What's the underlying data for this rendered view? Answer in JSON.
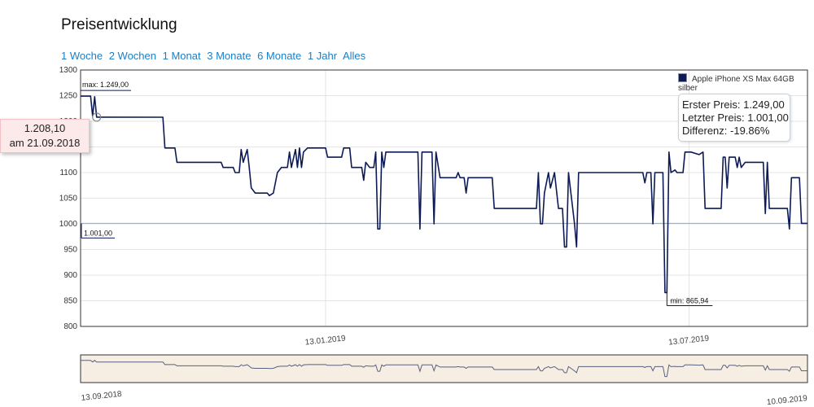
{
  "page_title": "Preisentwicklung",
  "range_buttons": [
    "1 Woche",
    "2 Wochen",
    "1 Monat",
    "3 Monate",
    "6 Monate",
    "1 Jahr",
    "Alles"
  ],
  "tooltip": {
    "value": "1.208,10",
    "date": "am 21.09.2018"
  },
  "infobox": {
    "first_price": "Erster Preis: 1.249,00",
    "last_price": "Letzter Preis: 1.001,00",
    "difference": "Differenz: -19.86%"
  },
  "colors": {
    "line": "#0d1a55",
    "navigator_bg": "#f6eee2",
    "link": "#1a7fc7"
  },
  "chart_data": {
    "type": "line",
    "title": "Preisentwicklung",
    "xlabel": "",
    "ylabel": "",
    "ylim": [
      800,
      1300
    ],
    "yticks": [
      800,
      850,
      900,
      950,
      1000,
      1050,
      1100,
      1150,
      1200,
      1250,
      1300
    ],
    "xticks": [
      {
        "date": "2019-01-13",
        "label": "13.01.2019"
      },
      {
        "date": "2019-07-13",
        "label": "13.07.2019"
      }
    ],
    "xrange": [
      "2018-09-13",
      "2019-09-10"
    ],
    "navigator_labels": [
      "13.09.2018",
      "10.09.2019"
    ],
    "grid": true,
    "legend_position": "top-right",
    "annotations": [
      {
        "text": "max: 1.249,00",
        "date": "2018-09-13",
        "value": 1249
      },
      {
        "text": "1.001,00",
        "date": "2019-09-10",
        "value": 1001
      },
      {
        "text": "min: 865,94",
        "date": "2019-07-02",
        "value": 865.94
      }
    ],
    "reference_line": 1001,
    "marker": {
      "date": "2018-09-21",
      "value": 1208.1
    },
    "series": [
      {
        "name": "Apple iPhone XS Max 64GB silber",
        "points": [
          [
            "2018-09-13",
            1249
          ],
          [
            "2018-09-18",
            1249
          ],
          [
            "2018-09-19",
            1210
          ],
          [
            "2018-09-20",
            1248
          ],
          [
            "2018-09-21",
            1208.1
          ],
          [
            "2018-10-24",
            1208
          ],
          [
            "2018-10-25",
            1148
          ],
          [
            "2018-10-30",
            1148
          ],
          [
            "2018-10-31",
            1120
          ],
          [
            "2018-11-22",
            1120
          ],
          [
            "2018-11-23",
            1110
          ],
          [
            "2018-11-28",
            1110
          ],
          [
            "2018-11-29",
            1100
          ],
          [
            "2018-12-01",
            1100
          ],
          [
            "2018-12-02",
            1145
          ],
          [
            "2018-12-03",
            1120
          ],
          [
            "2018-12-05",
            1145
          ],
          [
            "2018-12-06",
            1110
          ],
          [
            "2018-12-07",
            1070
          ],
          [
            "2018-12-09",
            1060
          ],
          [
            "2018-12-15",
            1060
          ],
          [
            "2018-12-16",
            1055
          ],
          [
            "2018-12-18",
            1060
          ],
          [
            "2018-12-20",
            1100
          ],
          [
            "2018-12-22",
            1110
          ],
          [
            "2018-12-25",
            1110
          ],
          [
            "2018-12-26",
            1140
          ],
          [
            "2018-12-27",
            1110
          ],
          [
            "2018-12-29",
            1145
          ],
          [
            "2018-12-30",
            1110
          ],
          [
            "2018-12-31",
            1148
          ],
          [
            "2019-01-01",
            1110
          ],
          [
            "2019-01-02",
            1140
          ],
          [
            "2019-01-04",
            1148
          ],
          [
            "2019-01-13",
            1148
          ],
          [
            "2019-01-14",
            1130
          ],
          [
            "2019-01-21",
            1130
          ],
          [
            "2019-01-22",
            1148
          ],
          [
            "2019-01-25",
            1148
          ],
          [
            "2019-01-26",
            1110
          ],
          [
            "2019-01-31",
            1110
          ],
          [
            "2019-02-01",
            1085
          ],
          [
            "2019-02-02",
            1120
          ],
          [
            "2019-02-04",
            1110
          ],
          [
            "2019-02-06",
            1110
          ],
          [
            "2019-02-07",
            1140
          ],
          [
            "2019-02-08",
            990
          ],
          [
            "2019-02-09",
            990
          ],
          [
            "2019-02-10",
            1140
          ],
          [
            "2019-02-11",
            1110
          ],
          [
            "2019-02-12",
            1140
          ],
          [
            "2019-02-28",
            1140
          ],
          [
            "2019-03-01",
            990
          ],
          [
            "2019-03-02",
            1140
          ],
          [
            "2019-03-07",
            1140
          ],
          [
            "2019-03-08",
            1000
          ],
          [
            "2019-03-09",
            1140
          ],
          [
            "2019-03-11",
            1090
          ],
          [
            "2019-03-19",
            1090
          ],
          [
            "2019-03-20",
            1100
          ],
          [
            "2019-03-21",
            1090
          ],
          [
            "2019-03-23",
            1090
          ],
          [
            "2019-03-24",
            1060
          ],
          [
            "2019-03-25",
            1090
          ],
          [
            "2019-04-06",
            1090
          ],
          [
            "2019-04-07",
            1030
          ],
          [
            "2019-04-28",
            1030
          ],
          [
            "2019-04-29",
            1100
          ],
          [
            "2019-04-30",
            1000
          ],
          [
            "2019-05-01",
            1000
          ],
          [
            "2019-05-02",
            1060
          ],
          [
            "2019-05-04",
            1100
          ],
          [
            "2019-05-05",
            1070
          ],
          [
            "2019-05-07",
            1100
          ],
          [
            "2019-05-09",
            1030
          ],
          [
            "2019-05-11",
            1030
          ],
          [
            "2019-05-12",
            955
          ],
          [
            "2019-05-13",
            955
          ],
          [
            "2019-05-14",
            1100
          ],
          [
            "2019-05-17",
            1000
          ],
          [
            "2019-05-18",
            955
          ],
          [
            "2019-05-19",
            1100
          ],
          [
            "2019-06-20",
            1100
          ],
          [
            "2019-06-21",
            1080
          ],
          [
            "2019-06-22",
            1100
          ],
          [
            "2019-06-24",
            1100
          ],
          [
            "2019-06-25",
            1000
          ],
          [
            "2019-06-26",
            1100
          ],
          [
            "2019-06-30",
            1100
          ],
          [
            "2019-07-01",
            866
          ],
          [
            "2019-07-02",
            865.94
          ],
          [
            "2019-07-03",
            1140
          ],
          [
            "2019-07-04",
            1100
          ],
          [
            "2019-07-06",
            1105
          ],
          [
            "2019-07-07",
            1100
          ],
          [
            "2019-07-10",
            1100
          ],
          [
            "2019-07-11",
            1140
          ],
          [
            "2019-07-14",
            1140
          ],
          [
            "2019-07-18",
            1135
          ],
          [
            "2019-07-20",
            1140
          ],
          [
            "2019-07-21",
            1030
          ],
          [
            "2019-07-29",
            1030
          ],
          [
            "2019-07-30",
            1130
          ],
          [
            "2019-07-31",
            1130
          ],
          [
            "2019-08-01",
            1070
          ],
          [
            "2019-08-02",
            1130
          ],
          [
            "2019-08-05",
            1130
          ],
          [
            "2019-08-06",
            1110
          ],
          [
            "2019-08-07",
            1130
          ],
          [
            "2019-08-08",
            1110
          ],
          [
            "2019-08-10",
            1120
          ],
          [
            "2019-08-19",
            1120
          ],
          [
            "2019-08-20",
            1020
          ],
          [
            "2019-08-21",
            1120
          ],
          [
            "2019-08-22",
            1030
          ],
          [
            "2019-08-31",
            1030
          ],
          [
            "2019-09-01",
            990
          ],
          [
            "2019-09-02",
            1090
          ],
          [
            "2019-09-03",
            1090
          ],
          [
            "2019-09-06",
            1090
          ],
          [
            "2019-09-07",
            1001
          ],
          [
            "2019-09-10",
            1001
          ]
        ]
      }
    ]
  }
}
